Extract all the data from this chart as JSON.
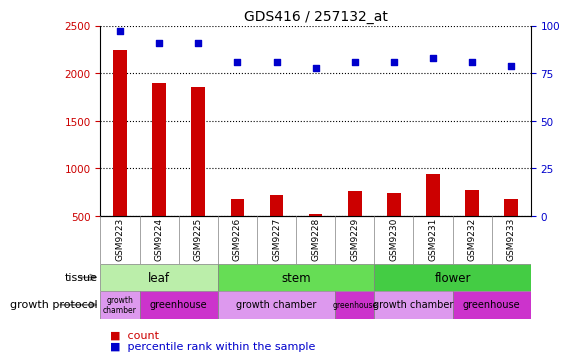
{
  "title": "GDS416 / 257132_at",
  "samples": [
    "GSM9223",
    "GSM9224",
    "GSM9225",
    "GSM9226",
    "GSM9227",
    "GSM9228",
    "GSM9229",
    "GSM9230",
    "GSM9231",
    "GSM9232",
    "GSM9233"
  ],
  "counts": [
    2240,
    1900,
    1860,
    680,
    720,
    520,
    760,
    740,
    940,
    770,
    680
  ],
  "percentiles": [
    97,
    91,
    91,
    81,
    81,
    78,
    81,
    81,
    83,
    81,
    79
  ],
  "ylim_left": [
    500,
    2500
  ],
  "ylim_right": [
    0,
    100
  ],
  "yticks_left": [
    500,
    1000,
    1500,
    2000,
    2500
  ],
  "yticks_right": [
    0,
    25,
    50,
    75,
    100
  ],
  "bar_color": "#cc0000",
  "dot_color": "#0000cc",
  "tissue_groups": [
    {
      "label": "leaf",
      "start": 0,
      "end": 3,
      "color": "#bbeeaa"
    },
    {
      "label": "stem",
      "start": 3,
      "end": 7,
      "color": "#66dd55"
    },
    {
      "label": "flower",
      "start": 7,
      "end": 11,
      "color": "#44cc44"
    }
  ],
  "protocol_groups": [
    {
      "label": "growth\nchamber",
      "start": 0,
      "end": 1,
      "color": "#dd88ee"
    },
    {
      "label": "greenhouse",
      "start": 1,
      "end": 3,
      "color": "#cc33cc"
    },
    {
      "label": "growth chamber",
      "start": 3,
      "end": 6,
      "color": "#dd88ee"
    },
    {
      "label": "greenhouse",
      "start": 6,
      "end": 7,
      "color": "#cc33cc"
    },
    {
      "label": "growth chamber",
      "start": 7,
      "end": 9,
      "color": "#dd88ee"
    },
    {
      "label": "greenhouse",
      "start": 9,
      "end": 11,
      "color": "#cc33cc"
    }
  ],
  "tissue_label": "tissue",
  "protocol_label": "growth protocol",
  "legend_count": "count",
  "legend_percentile": "percentile rank within the sample",
  "background_color": "#ffffff",
  "tick_label_color_left": "#cc0000",
  "tick_label_color_right": "#0000cc",
  "xticklabel_bg": "#cccccc"
}
